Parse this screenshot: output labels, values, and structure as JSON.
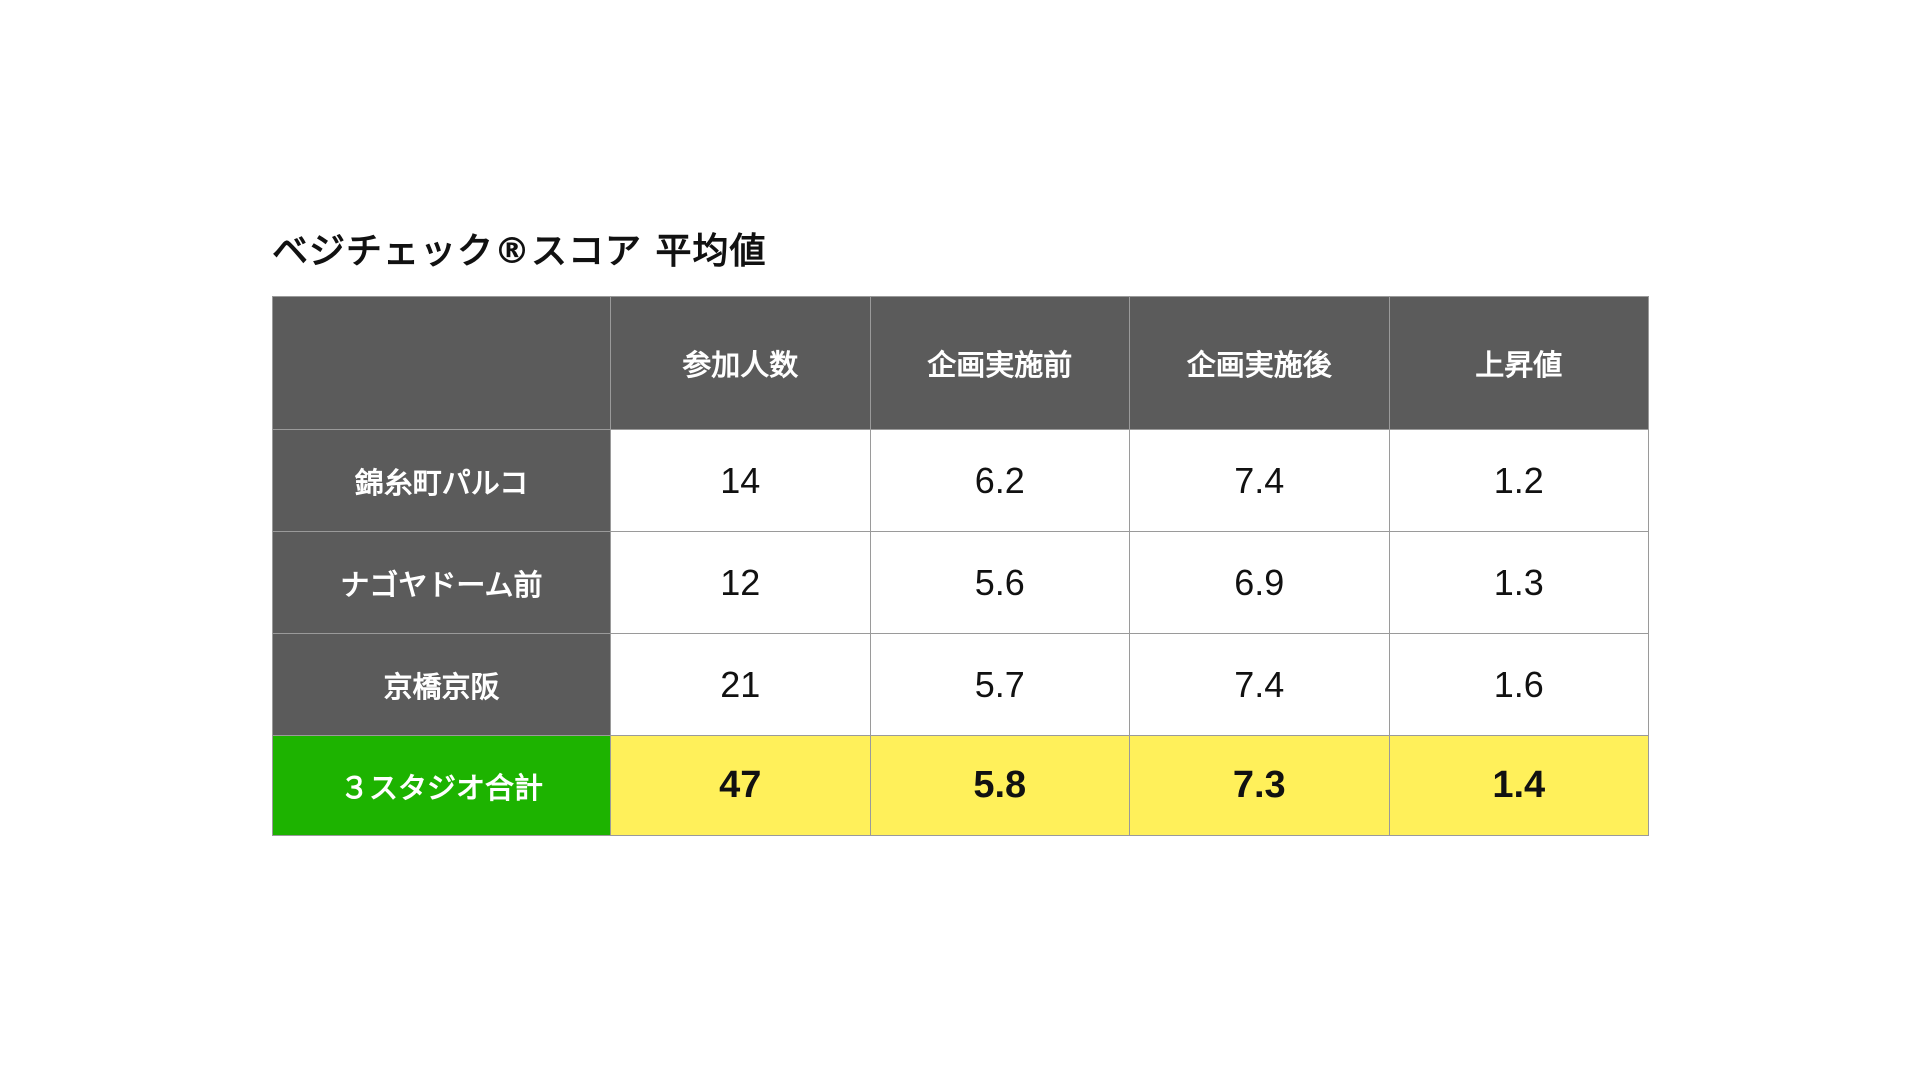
{
  "title": "ベジチェック®スコア 平均値",
  "table": {
    "headers": [
      "",
      "参加人数",
      "企画実施前",
      "企画実施後",
      "上昇値"
    ],
    "rows": [
      {
        "label": "錦糸町パルコ",
        "values": [
          "14",
          "6.2",
          "7.4",
          "1.2"
        ]
      },
      {
        "label": "ナゴヤドーム前",
        "values": [
          "12",
          "5.6",
          "6.9",
          "1.3"
        ]
      },
      {
        "label": "京橋京阪",
        "values": [
          "21",
          "5.7",
          "7.4",
          "1.6"
        ]
      }
    ],
    "total": {
      "label": "３スタジオ合計",
      "values": [
        "47",
        "5.8",
        "7.3",
        "1.4"
      ]
    }
  },
  "colors": {
    "header_bg": "#5b5b5b",
    "total_label_bg": "#1db300",
    "total_values_bg": "#fff05a",
    "border": "#9a9a9a"
  }
}
